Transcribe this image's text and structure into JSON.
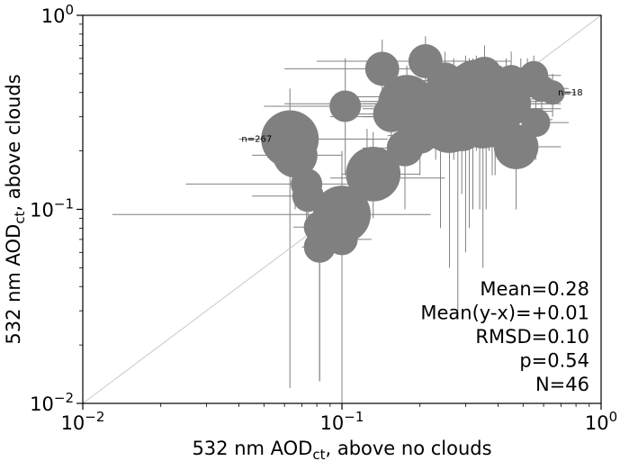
{
  "chart_data": {
    "type": "scatter",
    "xlabel": {
      "main": "532 nm AOD",
      "sub": "ct",
      "rest": ", above no clouds"
    },
    "ylabel": {
      "main": "532 nm AOD",
      "sub": "ct",
      "rest": ", above clouds"
    },
    "x_scale": "log",
    "y_scale": "log",
    "xlim": [
      0.01,
      1.0
    ],
    "ylim": [
      0.01,
      1.0
    ],
    "x_ticks": [
      {
        "value": 0.01,
        "base": "10",
        "exp": "−2"
      },
      {
        "value": 0.1,
        "base": "10",
        "exp": "−1"
      },
      {
        "value": 1.0,
        "base": "10",
        "exp": "0"
      }
    ],
    "y_ticks": [
      {
        "value": 0.01,
        "base": "10",
        "exp": "−2"
      },
      {
        "value": 0.1,
        "base": "10",
        "exp": "−1"
      },
      {
        "value": 1.0,
        "base": "10",
        "exp": "0"
      }
    ],
    "grid": false,
    "reference_line": "1:1",
    "colors": {
      "marker": "#808080",
      "errorbar": "#808080",
      "one_to_one": "#c8c8c8",
      "frame": "#000000"
    },
    "stats": [
      "Mean=0.28",
      "Mean(y-x)=+0.01",
      "RMSD=0.10",
      "p=0.54",
      "N=46"
    ],
    "annotations": [
      {
        "text": "n=267",
        "x": 0.063,
        "y": 0.23
      },
      {
        "text": "n=18",
        "x": 0.65,
        "y": 0.4
      }
    ],
    "points": [
      {
        "x": 0.063,
        "y": 0.23,
        "n": 267,
        "xerr": [
          0.04,
          0.15
        ],
        "yerr": [
          0.012,
          0.42
        ]
      },
      {
        "x": 0.066,
        "y": 0.19,
        "n": 60,
        "xerr": [
          0.045,
          0.1
        ],
        "yerr": [
          0.1,
          0.26
        ]
      },
      {
        "x": 0.073,
        "y": 0.135,
        "n": 30,
        "xerr": [
          0.025,
          0.15
        ],
        "yerr": [
          0.09,
          0.17
        ]
      },
      {
        "x": 0.074,
        "y": 0.117,
        "n": 30,
        "xerr": [
          0.045,
          0.11
        ],
        "yerr": [
          0.08,
          0.15
        ]
      },
      {
        "x": 0.082,
        "y": 0.081,
        "n": 30,
        "xerr": [
          0.065,
          0.1
        ],
        "yerr": [
          0.013,
          0.15
        ]
      },
      {
        "x": 0.082,
        "y": 0.064,
        "n": 30,
        "xerr": [
          0.07,
          0.095
        ],
        "yerr": [
          0.013,
          0.09
        ]
      },
      {
        "x": 0.1,
        "y": 0.094,
        "n": 150,
        "xerr": [
          0.013,
          0.22
        ],
        "yerr": [
          0.014,
          0.2
        ]
      },
      {
        "x": 0.1,
        "y": 0.07,
        "n": 30,
        "xerr": [
          0.08,
          0.13
        ],
        "yerr": [
          0.01,
          0.11
        ]
      },
      {
        "x": 0.103,
        "y": 0.34,
        "n": 30,
        "xerr": [
          0.05,
          0.2
        ],
        "yerr": [
          0.15,
          0.6
        ]
      },
      {
        "x": 0.125,
        "y": 0.145,
        "n": 40,
        "xerr": [
          0.09,
          0.25
        ],
        "yerr": [
          0.08,
          0.26
        ]
      },
      {
        "x": 0.132,
        "y": 0.152,
        "n": 90,
        "xerr": [
          0.1,
          0.2
        ],
        "yerr": [
          0.09,
          0.25
        ]
      },
      {
        "x": 0.143,
        "y": 0.53,
        "n": 35,
        "xerr": [
          0.06,
          0.35
        ],
        "yerr": [
          0.3,
          0.75
        ]
      },
      {
        "x": 0.155,
        "y": 0.31,
        "n": 40,
        "xerr": [
          0.1,
          0.25
        ],
        "yerr": [
          0.15,
          0.45
        ]
      },
      {
        "x": 0.175,
        "y": 0.207,
        "n": 40,
        "xerr": [
          0.12,
          0.25
        ],
        "yerr": [
          0.1,
          0.3
        ]
      },
      {
        "x": 0.178,
        "y": 0.35,
        "n": 140,
        "xerr": [
          0.06,
          0.33
        ],
        "yerr": [
          0.18,
          0.55
        ]
      },
      {
        "x": 0.2,
        "y": 0.24,
        "n": 40,
        "xerr": [
          0.15,
          0.28
        ],
        "yerr": [
          0.15,
          0.35
        ]
      },
      {
        "x": 0.21,
        "y": 0.58,
        "n": 35,
        "xerr": [
          0.08,
          0.45
        ],
        "yerr": [
          0.4,
          0.78
        ]
      },
      {
        "x": 0.24,
        "y": 0.3,
        "n": 80,
        "xerr": [
          0.12,
          0.4
        ],
        "yerr": [
          0.08,
          0.5
        ]
      },
      {
        "x": 0.26,
        "y": 0.27,
        "n": 90,
        "xerr": [
          0.17,
          0.42
        ],
        "yerr": [
          0.05,
          0.45
        ]
      },
      {
        "x": 0.27,
        "y": 0.38,
        "n": 160,
        "xerr": [
          0.1,
          0.55
        ],
        "yerr": [
          0.18,
          0.6
        ]
      },
      {
        "x": 0.28,
        "y": 0.3,
        "n": 300,
        "xerr": [
          0.09,
          0.55
        ],
        "yerr": [
          0.03,
          0.55
        ]
      },
      {
        "x": 0.3,
        "y": 0.36,
        "n": 330,
        "xerr": [
          0.1,
          0.6
        ],
        "yerr": [
          0.06,
          0.62
        ]
      },
      {
        "x": 0.31,
        "y": 0.33,
        "n": 200,
        "xerr": [
          0.12,
          0.6
        ],
        "yerr": [
          0.08,
          0.6
        ]
      },
      {
        "x": 0.32,
        "y": 0.38,
        "n": 250,
        "xerr": [
          0.1,
          0.58
        ],
        "yerr": [
          0.1,
          0.6
        ]
      },
      {
        "x": 0.34,
        "y": 0.32,
        "n": 180,
        "xerr": [
          0.15,
          0.65
        ],
        "yerr": [
          0.1,
          0.55
        ]
      },
      {
        "x": 0.35,
        "y": 0.29,
        "n": 100,
        "xerr": [
          0.15,
          0.65
        ],
        "yerr": [
          0.05,
          0.5
        ]
      },
      {
        "x": 0.355,
        "y": 0.5,
        "n": 35,
        "xerr": [
          0.2,
          0.55
        ],
        "yerr": [
          0.3,
          0.7
        ]
      },
      {
        "x": 0.37,
        "y": 0.4,
        "n": 100,
        "xerr": [
          0.2,
          0.6
        ],
        "yerr": [
          0.2,
          0.6
        ]
      },
      {
        "x": 0.39,
        "y": 0.33,
        "n": 180,
        "xerr": [
          0.2,
          0.7
        ],
        "yerr": [
          0.15,
          0.55
        ]
      },
      {
        "x": 0.41,
        "y": 0.37,
        "n": 90,
        "xerr": [
          0.25,
          0.65
        ],
        "yerr": [
          0.2,
          0.55
        ]
      },
      {
        "x": 0.43,
        "y": 0.4,
        "n": 40,
        "xerr": [
          0.28,
          0.6
        ],
        "yerr": [
          0.25,
          0.6
        ]
      },
      {
        "x": 0.44,
        "y": 0.35,
        "n": 60,
        "xerr": [
          0.3,
          0.7
        ],
        "yerr": [
          0.2,
          0.5
        ]
      },
      {
        "x": 0.45,
        "y": 0.46,
        "n": 30,
        "xerr": [
          0.3,
          0.6
        ],
        "yerr": [
          0.3,
          0.65
        ]
      },
      {
        "x": 0.47,
        "y": 0.21,
        "n": 60,
        "xerr": [
          0.3,
          0.7
        ],
        "yerr": [
          0.1,
          0.35
        ]
      },
      {
        "x": 0.49,
        "y": 0.44,
        "n": 30,
        "xerr": [
          0.35,
          0.65
        ],
        "yerr": [
          0.3,
          0.6
        ]
      },
      {
        "x": 0.52,
        "y": 0.46,
        "n": 25,
        "xerr": [
          0.4,
          0.65
        ],
        "yerr": [
          0.35,
          0.6
        ]
      },
      {
        "x": 0.55,
        "y": 0.49,
        "n": 25,
        "xerr": [
          0.42,
          0.7
        ],
        "yerr": [
          0.38,
          0.62
        ]
      },
      {
        "x": 0.56,
        "y": 0.28,
        "n": 25,
        "xerr": [
          0.4,
          0.75
        ],
        "yerr": [
          0.18,
          0.4
        ]
      },
      {
        "x": 0.59,
        "y": 0.42,
        "n": 22,
        "xerr": [
          0.45,
          0.75
        ],
        "yerr": [
          0.3,
          0.55
        ]
      },
      {
        "x": 0.65,
        "y": 0.4,
        "n": 18,
        "xerr": [
          0.5,
          0.8
        ],
        "yerr": [
          0.3,
          0.5
        ]
      },
      {
        "x": 0.25,
        "y": 0.46,
        "n": 40,
        "xerr": [
          0.15,
          0.4
        ],
        "yerr": [
          0.25,
          0.65
        ]
      },
      {
        "x": 0.29,
        "y": 0.26,
        "n": 60,
        "xerr": [
          0.18,
          0.45
        ],
        "yerr": [
          0.12,
          0.4
        ]
      },
      {
        "x": 0.33,
        "y": 0.42,
        "n": 120,
        "xerr": [
          0.15,
          0.6
        ],
        "yerr": [
          0.2,
          0.62
        ]
      },
      {
        "x": 0.23,
        "y": 0.33,
        "n": 50,
        "xerr": [
          0.14,
          0.38
        ],
        "yerr": [
          0.18,
          0.48
        ]
      },
      {
        "x": 0.38,
        "y": 0.27,
        "n": 50,
        "xerr": [
          0.22,
          0.62
        ],
        "yerr": [
          0.15,
          0.42
        ]
      },
      {
        "x": 0.36,
        "y": 0.35,
        "n": 300,
        "xerr": [
          0.12,
          0.65
        ],
        "yerr": [
          0.1,
          0.6
        ]
      }
    ]
  }
}
